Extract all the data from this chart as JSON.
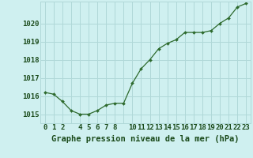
{
  "x": [
    0,
    1,
    2,
    3,
    4,
    5,
    6,
    7,
    8,
    9,
    10,
    11,
    12,
    13,
    14,
    15,
    16,
    17,
    18,
    19,
    20,
    21,
    22,
    23
  ],
  "y": [
    1016.2,
    1016.1,
    1015.7,
    1015.2,
    1015.0,
    1015.0,
    1015.2,
    1015.5,
    1015.6,
    1015.6,
    1016.7,
    1017.5,
    1018.0,
    1018.6,
    1018.9,
    1019.1,
    1019.5,
    1019.5,
    1019.5,
    1019.6,
    1020.0,
    1020.3,
    1020.9,
    1021.1
  ],
  "line_color": "#2d6a2d",
  "marker": "D",
  "marker_size": 2.0,
  "background_color": "#cff0f0",
  "grid_color": "#b0d8d8",
  "ylabel_ticks": [
    1015,
    1016,
    1017,
    1018,
    1019,
    1020
  ],
  "ylim": [
    1014.5,
    1021.2
  ],
  "xlim": [
    -0.5,
    23.5
  ],
  "xlabel": "Graphe pression niveau de la mer (hPa)",
  "xtick_labels": [
    "0",
    "1",
    "2",
    "",
    "4",
    "5",
    "6",
    "7",
    "8",
    "",
    "1011121314151617181920212223"
  ],
  "title_color": "#1a4a1a",
  "tick_fontsize": 6.5,
  "label_fontsize": 7.5
}
